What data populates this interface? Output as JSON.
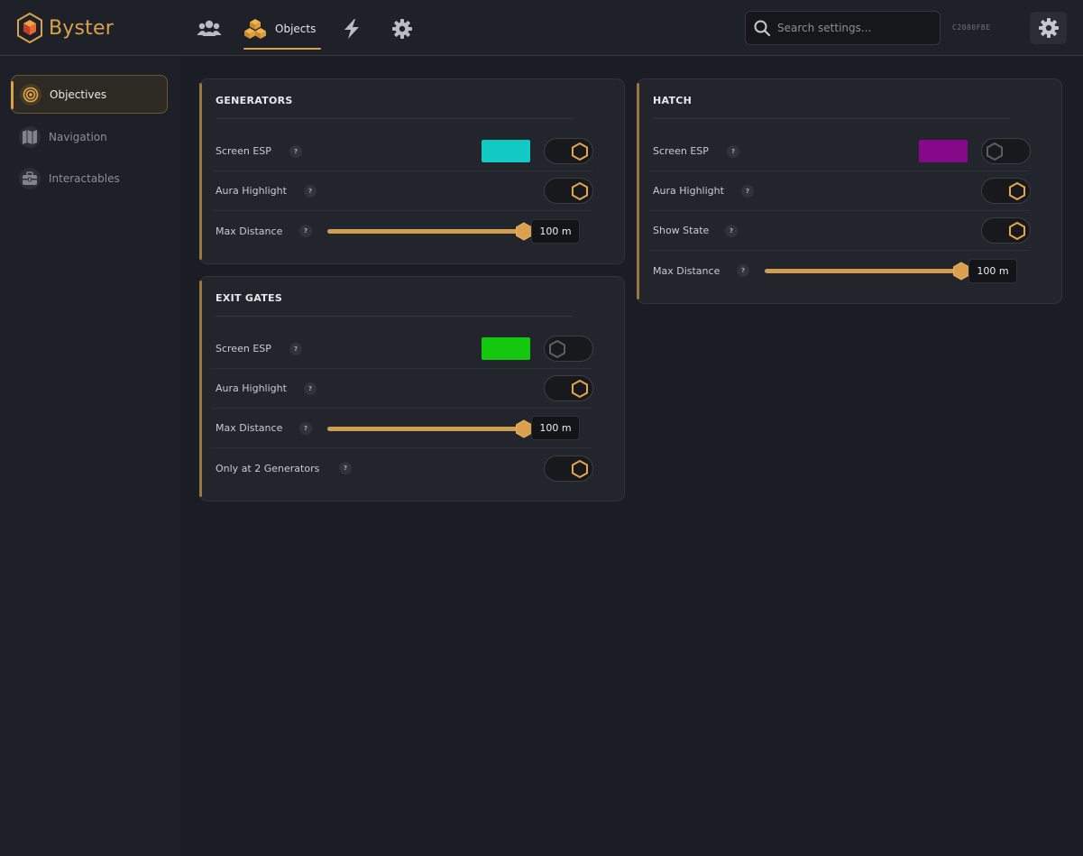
{
  "app": {
    "title": "Byster"
  },
  "header": {
    "tabs": [
      {
        "id": "players",
        "icon": "users-icon",
        "label": ""
      },
      {
        "id": "objects",
        "icon": "cubes-icon",
        "label": "Objects",
        "active": true
      },
      {
        "id": "misc",
        "icon": "lightning-icon",
        "label": ""
      },
      {
        "id": "settings",
        "icon": "gear-icon",
        "label": ""
      }
    ],
    "search_placeholder": "Search settings...",
    "hwid": "C2080FBE"
  },
  "sidebar": {
    "items": [
      {
        "label": "Objectives",
        "icon": "target-icon",
        "active": true
      },
      {
        "label": "Navigation",
        "icon": "map-icon",
        "active": false
      },
      {
        "label": "Interactables",
        "icon": "toolbox-icon",
        "active": false
      }
    ]
  },
  "colors": {
    "accent": "#d9a14e",
    "generators_esp": "#12c9c4",
    "exit_gates_esp": "#14c80f",
    "hatch_esp": "#86098a"
  },
  "cards": {
    "generators": {
      "title": "GENERATORS",
      "screen_esp": {
        "label": "Screen ESP",
        "enabled": true,
        "color": "#12c9c4"
      },
      "aura_highlight": {
        "label": "Aura Highlight",
        "enabled": true
      },
      "max_distance": {
        "label": "Max Distance",
        "value": "100 m",
        "fraction": 1.0
      }
    },
    "exit_gates": {
      "title": "EXIT GATES",
      "screen_esp": {
        "label": "Screen ESP",
        "enabled": false,
        "color": "#14c80f"
      },
      "aura_highlight": {
        "label": "Aura Highlight",
        "enabled": true
      },
      "max_distance": {
        "label": "Max Distance",
        "value": "100 m",
        "fraction": 1.0
      },
      "only_at_2": {
        "label": "Only at 2 Generators",
        "enabled": true
      }
    },
    "hatch": {
      "title": "HATCH",
      "screen_esp": {
        "label": "Screen ESP",
        "enabled": false,
        "color": "#86098a"
      },
      "aura_highlight": {
        "label": "Aura Highlight",
        "enabled": true
      },
      "show_state": {
        "label": "Show State",
        "enabled": true
      },
      "max_distance": {
        "label": "Max Distance",
        "value": "100 m",
        "fraction": 1.0
      }
    }
  },
  "help_glyph": "?"
}
